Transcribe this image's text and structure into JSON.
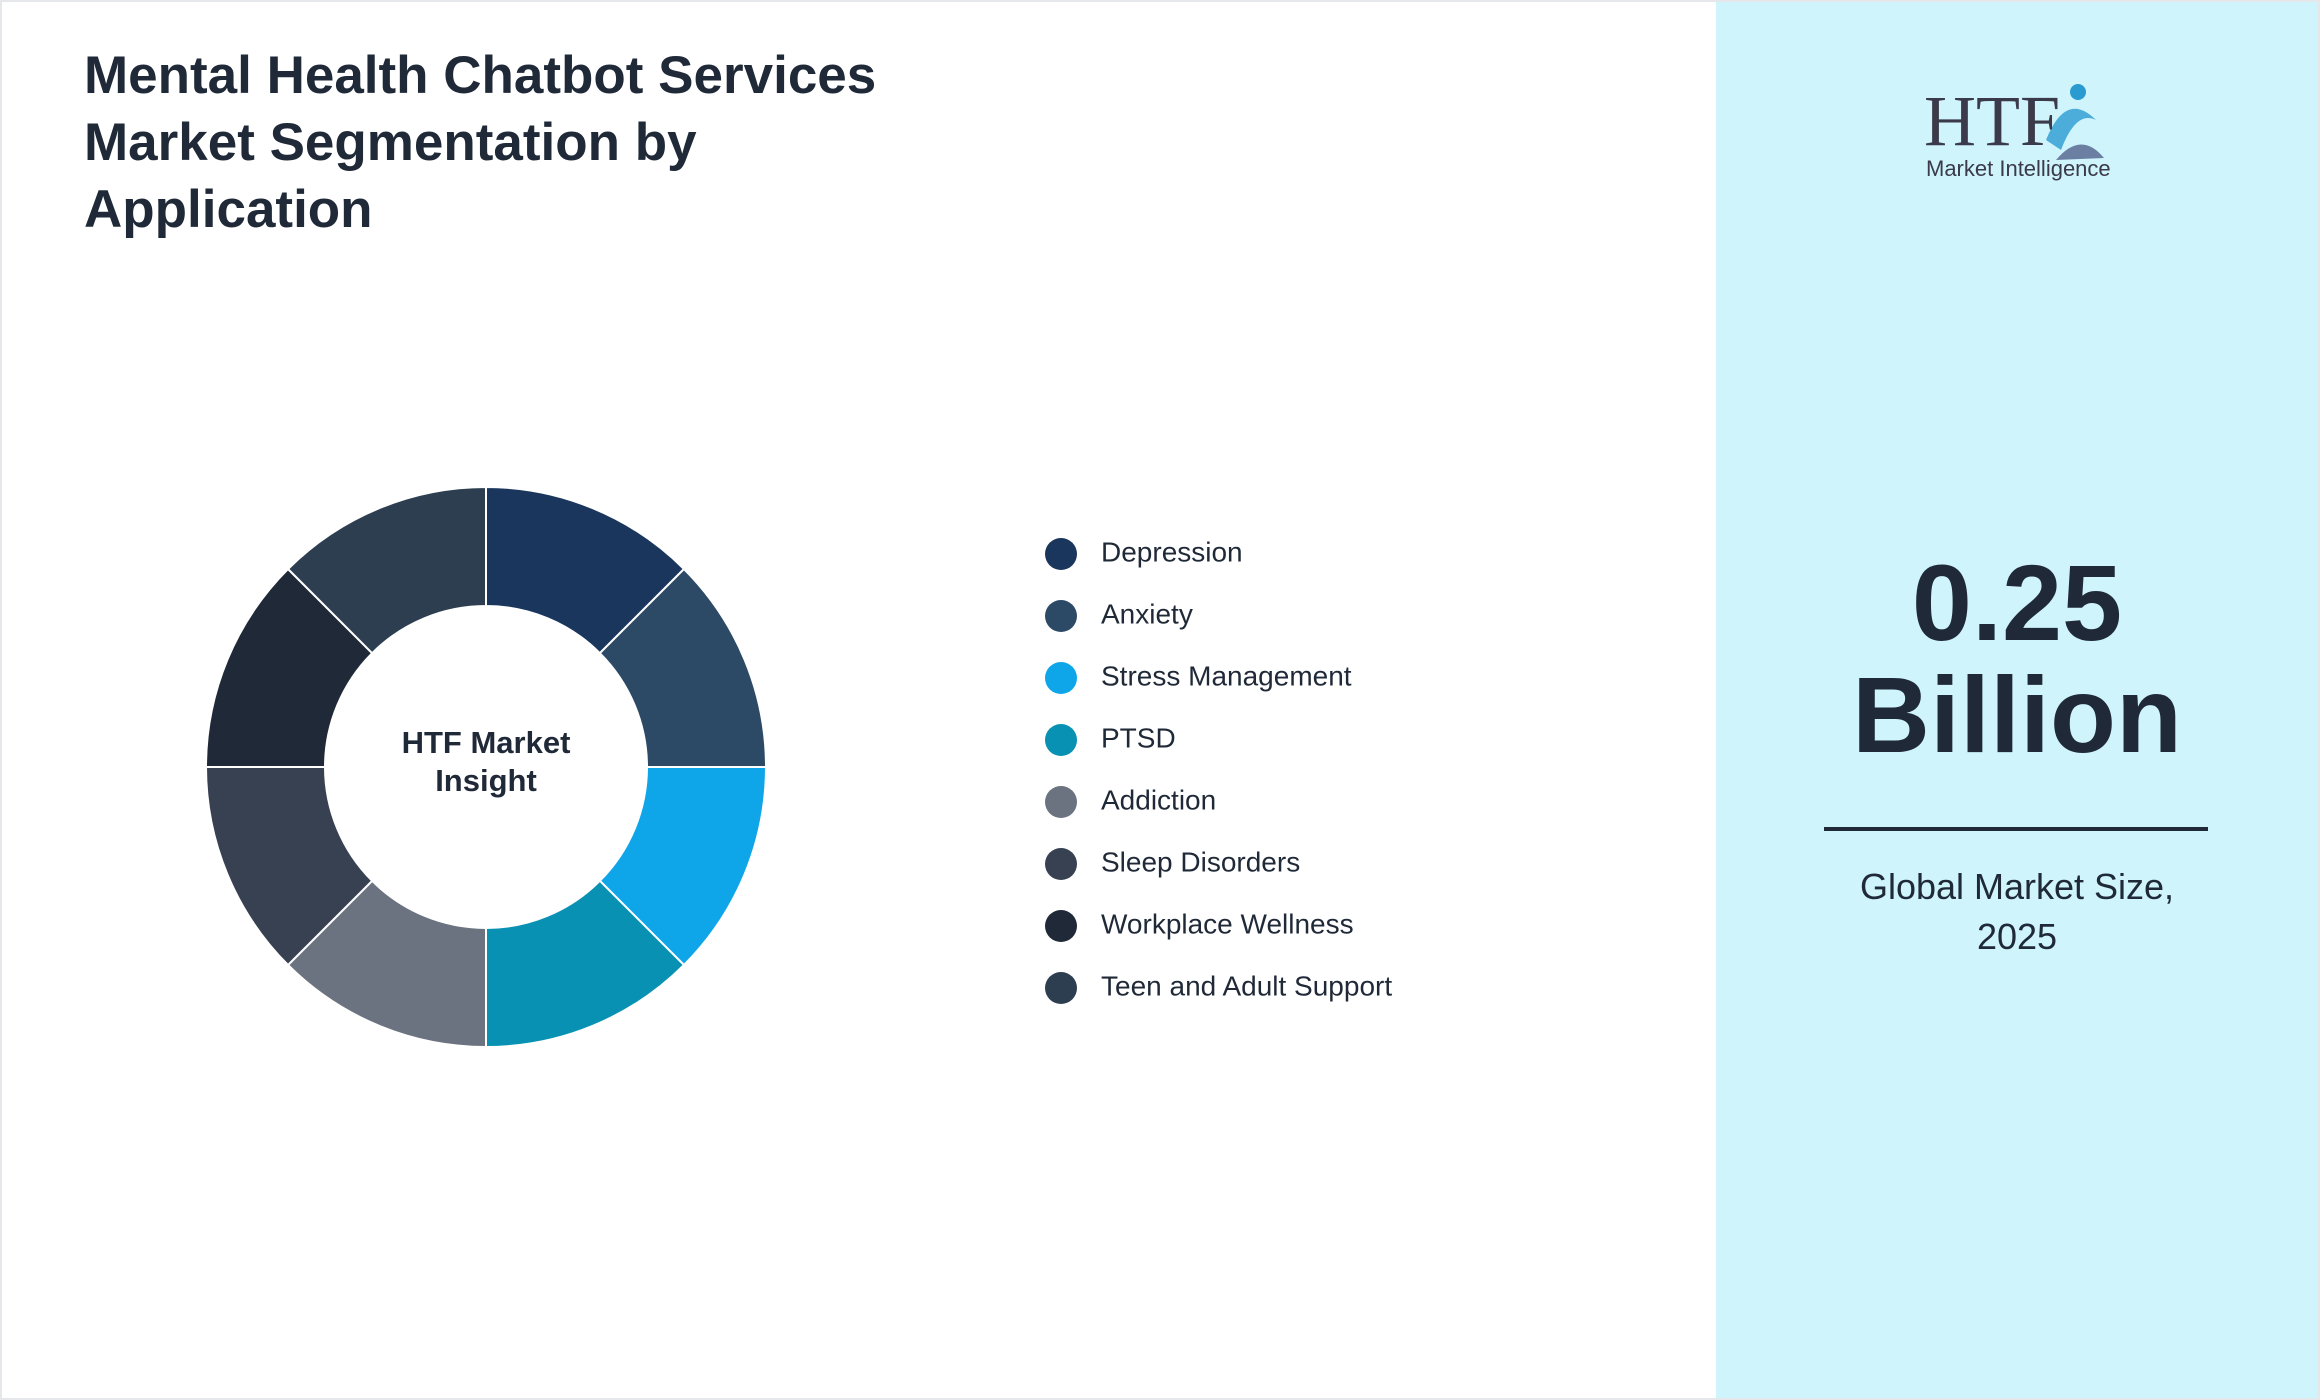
{
  "chart_data": {
    "type": "donut",
    "title": "Mental Health Chatbot Services Market Segmentation by Application",
    "categories": [
      "Depression",
      "Anxiety",
      "Stress Management",
      "PTSD",
      "Addiction",
      "Sleep Disorders",
      "Workplace Wellness",
      "Teen and Adult Support"
    ],
    "values": [
      12.5,
      12.5,
      12.5,
      12.5,
      12.5,
      12.5,
      12.5,
      12.5
    ],
    "colors": [
      "#1a365d",
      "#2c4a66",
      "#0ea5e9",
      "#0891b2",
      "#6b7280",
      "#374151",
      "#1f2937",
      "#2d3e50"
    ],
    "center_label": "HTF Market Insight",
    "market_size": {
      "value": "0.25",
      "unit": "Billion"
    },
    "market_size_label": "Global Market Size, 2025",
    "logo": {
      "brand": "HTF",
      "tagline": "Market Intelligence"
    }
  }
}
